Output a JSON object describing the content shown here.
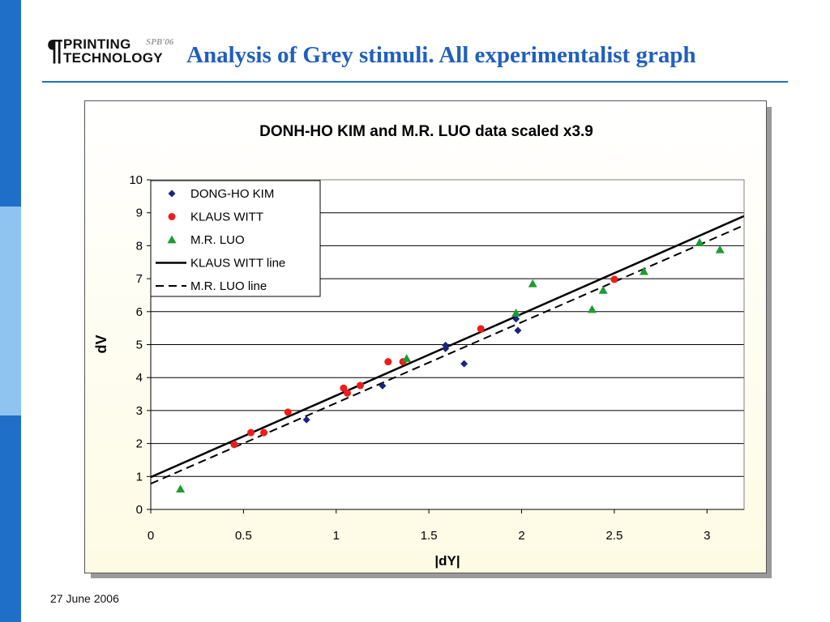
{
  "slide": {
    "title": "Analysis of  Grey stimuli. All experimentalist graph",
    "date": "27 June 2006",
    "logo": {
      "line1": "PRINTING",
      "line2": "TECHNOLOGY",
      "tag": "SPB'06"
    },
    "accent_color": "#1f6fc9",
    "title_color": "#1f5fbf"
  },
  "chart_data": {
    "type": "scatter",
    "title": "DONH-HO KIM and M.R. LUO data scaled x3.9",
    "xlabel": "|dY|",
    "ylabel": "dV",
    "xlim": [
      0,
      3.2
    ],
    "ylim": [
      0,
      10
    ],
    "x_ticks": [
      "0",
      "0.5",
      "1",
      "1.5",
      "2",
      "2.5",
      "3"
    ],
    "y_ticks": [
      "0",
      "1",
      "2",
      "3",
      "4",
      "5",
      "6",
      "7",
      "8",
      "9",
      "10"
    ],
    "grid": "horizontal",
    "legend_position": "top-left",
    "series": [
      {
        "name": "DONG-HO KIM",
        "marker": "diamond",
        "color": "#1a237e",
        "points": [
          [
            0.84,
            2.72
          ],
          [
            1.25,
            3.75
          ],
          [
            1.59,
            4.98
          ],
          [
            1.59,
            4.88
          ],
          [
            1.69,
            4.42
          ],
          [
            1.97,
            5.78
          ],
          [
            1.98,
            5.43
          ]
        ]
      },
      {
        "name": "KLAUS WITT",
        "marker": "circle",
        "color": "#ee1c1c",
        "points": [
          [
            0.45,
            1.97
          ],
          [
            0.54,
            2.33
          ],
          [
            0.61,
            2.33
          ],
          [
            0.74,
            2.95
          ],
          [
            1.04,
            3.68
          ],
          [
            1.06,
            3.53
          ],
          [
            1.13,
            3.76
          ],
          [
            1.28,
            4.48
          ],
          [
            1.36,
            4.48
          ],
          [
            1.78,
            5.48
          ],
          [
            2.5,
            6.98
          ]
        ]
      },
      {
        "name": "M.R. LUO",
        "marker": "triangle",
        "color": "#1e9b34",
        "points": [
          [
            0.16,
            0.62
          ],
          [
            1.38,
            4.58
          ],
          [
            1.97,
            5.96
          ],
          [
            2.06,
            6.85
          ],
          [
            2.38,
            6.07
          ],
          [
            2.44,
            6.65
          ],
          [
            2.66,
            7.22
          ],
          [
            2.96,
            8.1
          ],
          [
            3.07,
            7.88
          ]
        ]
      },
      {
        "name": "KLAUS WITT line",
        "style": "solid",
        "color": "#000000",
        "points": [
          [
            0,
            0.98
          ],
          [
            3.2,
            8.9
          ]
        ]
      },
      {
        "name": "M.R. LUO line",
        "style": "dashed",
        "color": "#000000",
        "points": [
          [
            0,
            0.78
          ],
          [
            3.2,
            8.62
          ]
        ]
      }
    ]
  }
}
